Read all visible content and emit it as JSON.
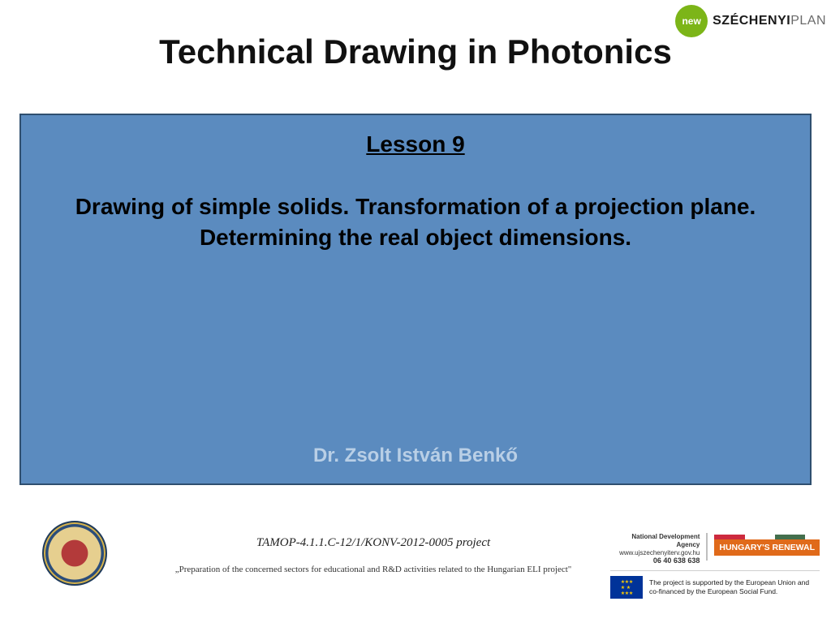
{
  "colors": {
    "body_box_bg": "#5b8bbf",
    "body_box_border": "#2f4f6f",
    "author_color": "#b9cfe6",
    "badge_green": "#7cb518",
    "renewal_orange": "#e06a1a",
    "eu_flag_blue": "#003399",
    "eu_flag_gold": "#ffcc00",
    "hu_flag": [
      "#cd2a3e",
      "#ffffff",
      "#436f4d"
    ]
  },
  "header": {
    "szechenyi_badge": "new",
    "szechenyi_text_bold": "SZÉCHENYI",
    "szechenyi_text_light": "PLAN"
  },
  "title": "Technical Drawing in Photonics",
  "body": {
    "lesson": "Lesson 9",
    "subtitle": "Drawing of simple solids. Transformation of a projection plane. Determining the real object dimensions.",
    "author": "Dr. Zsolt István Benkő"
  },
  "footer": {
    "project_code": "TAMOP-4.1.1.C-12/1/KONV-2012-0005 project",
    "project_desc": "„Preparation of the concerned sectors for educational and R&D activities related to the Hungarian ELI project\"",
    "nda_name": "National Development Agency",
    "nda_url": "www.ujszechenyiterv.gov.hu",
    "nda_phone": "06 40 638 638",
    "renewal": "HUNGARY'S RENEWAL",
    "eu_text": "The project is supported by the European Union and co-financed by the European Social Fund."
  }
}
